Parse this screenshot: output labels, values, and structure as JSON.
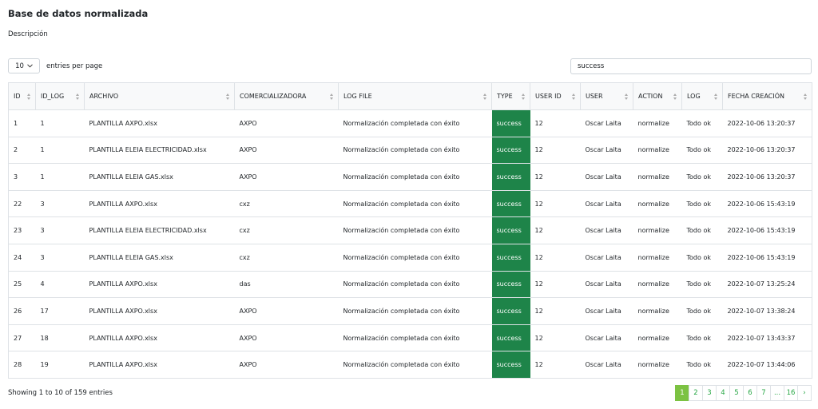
{
  "header": {
    "title": "Base de datos normalizada",
    "description": "Descripción"
  },
  "controls": {
    "per_page": "10",
    "per_page_label": "entries per page",
    "search": "success"
  },
  "table": {
    "columns": [
      "ID",
      "ID_LOG",
      "ARCHIVO",
      "COMERCIALIZADORA",
      "LOG FILE",
      "TYPE",
      "USER ID",
      "USER",
      "ACTION",
      "LOG",
      "FECHA CREACIÓN"
    ],
    "rows": [
      [
        "1",
        "1",
        "PLANTILLA AXPO.xlsx",
        "AXPO",
        "Normalización completada con éxito",
        "success",
        "12",
        "Oscar Laita",
        "normalize",
        "Todo ok",
        "2022-10-06 13:20:37"
      ],
      [
        "2",
        "1",
        "PLANTILLA ELEIA ELECTRICIDAD.xlsx",
        "AXPO",
        "Normalización completada con éxito",
        "success",
        "12",
        "Oscar Laita",
        "normalize",
        "Todo ok",
        "2022-10-06 13:20:37"
      ],
      [
        "3",
        "1",
        "PLANTILLA ELEIA GAS.xlsx",
        "AXPO",
        "Normalización completada con éxito",
        "success",
        "12",
        "Oscar Laita",
        "normalize",
        "Todo ok",
        "2022-10-06 13:20:37"
      ],
      [
        "22",
        "3",
        "PLANTILLA AXPO.xlsx",
        "cxz",
        "Normalización completada con éxito",
        "success",
        "12",
        "Oscar Laita",
        "normalize",
        "Todo ok",
        "2022-10-06 15:43:19"
      ],
      [
        "23",
        "3",
        "PLANTILLA ELEIA ELECTRICIDAD.xlsx",
        "cxz",
        "Normalización completada con éxito",
        "success",
        "12",
        "Oscar Laita",
        "normalize",
        "Todo ok",
        "2022-10-06 15:43:19"
      ],
      [
        "24",
        "3",
        "PLANTILLA ELEIA GAS.xlsx",
        "cxz",
        "Normalización completada con éxito",
        "success",
        "12",
        "Oscar Laita",
        "normalize",
        "Todo ok",
        "2022-10-06 15:43:19"
      ],
      [
        "25",
        "4",
        "PLANTILLA AXPO.xlsx",
        "das",
        "Normalización completada con éxito",
        "success",
        "12",
        "Oscar Laita",
        "normalize",
        "Todo ok",
        "2022-10-07 13:25:24"
      ],
      [
        "26",
        "17",
        "PLANTILLA AXPO.xlsx",
        "AXPO",
        "Normalización completada con éxito",
        "success",
        "12",
        "Oscar Laita",
        "normalize",
        "Todo ok",
        "2022-10-07 13:38:24"
      ],
      [
        "27",
        "18",
        "PLANTILLA AXPO.xlsx",
        "AXPO",
        "Normalización completada con éxito",
        "success",
        "12",
        "Oscar Laita",
        "normalize",
        "Todo ok",
        "2022-10-07 13:43:37"
      ],
      [
        "28",
        "19",
        "PLANTILLA AXPO.xlsx",
        "AXPO",
        "Normalización completada con éxito",
        "success",
        "12",
        "Oscar Laita",
        "normalize",
        "Todo ok",
        "2022-10-07 13:44:06"
      ]
    ]
  },
  "footer": {
    "info": "Showing 1 to 10 of 159 entries",
    "pages": [
      "1",
      "2",
      "3",
      "4",
      "5",
      "6",
      "7",
      "...",
      "16",
      "›"
    ]
  }
}
